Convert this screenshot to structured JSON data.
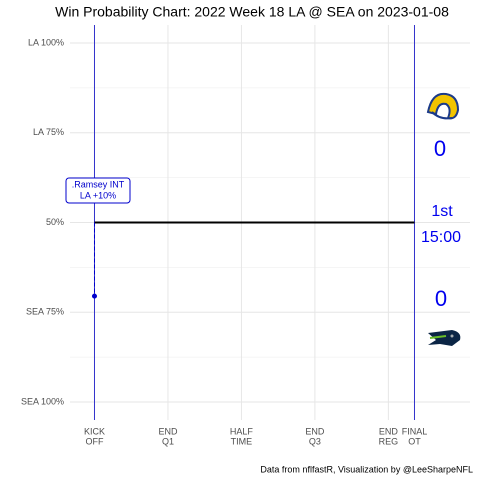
{
  "chart_data": {
    "type": "line",
    "title": "Win Probability Chart: 2022 Week 18 LA @ SEA on 2023-01-08",
    "caption": "Data from nflfastR, Visualization by @LeeSharpeNFL",
    "xlim": [
      -300,
      4600
    ],
    "ylim": [
      -5,
      105
    ],
    "grid": true,
    "xticks": [
      {
        "value": 0,
        "label": [
          "KICK",
          "OFF"
        ]
      },
      {
        "value": 900,
        "label": [
          "END",
          "Q1"
        ]
      },
      {
        "value": 1800,
        "label": [
          "HALF",
          "TIME"
        ]
      },
      {
        "value": 2700,
        "label": [
          "END",
          "Q3"
        ]
      },
      {
        "value": 3600,
        "label": [
          "END",
          "REG"
        ]
      },
      {
        "value": 3920,
        "label": [
          "FINAL",
          "OT"
        ]
      }
    ],
    "yticks": [
      {
        "value": 100,
        "label": "LA 100%"
      },
      {
        "value": 75,
        "label": "LA 75%"
      },
      {
        "value": 50,
        "label": "50%"
      },
      {
        "value": 25,
        "label": "SEA 75%"
      },
      {
        "value": 0,
        "label": "SEA 100%"
      }
    ],
    "series": [
      {
        "color": "#000000",
        "dashed": false,
        "x": [
          0,
          3920
        ],
        "values": [
          50,
          50
        ]
      },
      {
        "color": "#0000cc",
        "dashed": true,
        "x": [
          0,
          0
        ],
        "values": [
          50,
          29.5
        ]
      }
    ],
    "points": {
      "color": "#0000cc",
      "x": [
        0
      ],
      "values": [
        29.5
      ]
    },
    "vlines": {
      "color": "#3333cc",
      "x": [
        0,
        3920
      ]
    },
    "annotation": {
      "text": [
        ".Ramsey INT",
        "LA +10%"
      ],
      "color": "#0000cc"
    },
    "scoreboard": {
      "color": "#0000ee",
      "away_score": "0",
      "home_score": "0",
      "quarter": "1st",
      "clock": "15:00"
    }
  }
}
